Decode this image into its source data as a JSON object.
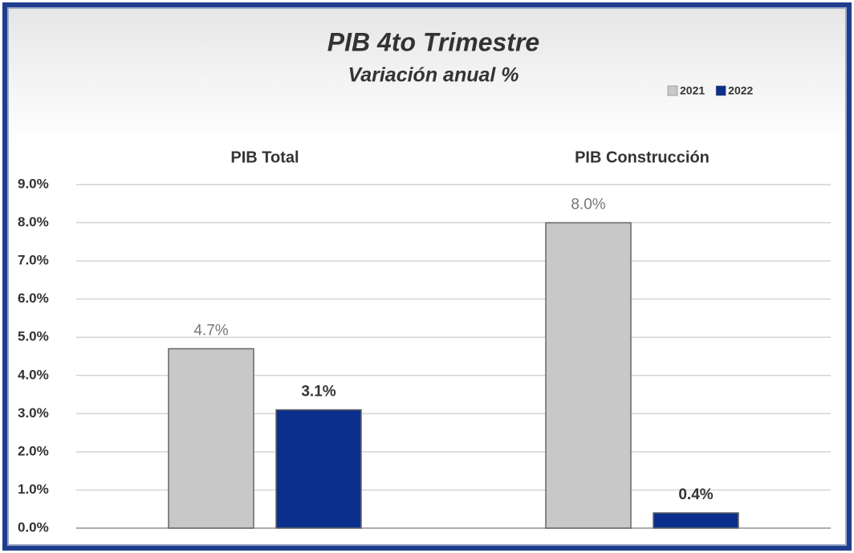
{
  "chart_data": {
    "type": "bar",
    "title": "PIB  4to Trimestre",
    "subtitle": "Variación anual %",
    "categories": [
      "PIB Total",
      "PIB Construcción"
    ],
    "series": [
      {
        "name": "2021",
        "color": "#c8c8c8",
        "values": [
          4.7,
          8.0
        ],
        "value_labels": [
          "4.7%",
          "8.0%"
        ]
      },
      {
        "name": "2022",
        "color": "#0b2f8c",
        "values": [
          3.1,
          0.4
        ],
        "value_labels": [
          "3.1%",
          "0.4%"
        ]
      }
    ],
    "ylim": [
      0,
      9
    ],
    "yticks": [
      {
        "value": 0,
        "label": "0.0%"
      },
      {
        "value": 1,
        "label": "1.0%"
      },
      {
        "value": 2,
        "label": "2.0%"
      },
      {
        "value": 3,
        "label": "3.0%"
      },
      {
        "value": 4,
        "label": "4.0%"
      },
      {
        "value": 5,
        "label": "5.0%"
      },
      {
        "value": 6,
        "label": "6.0%"
      },
      {
        "value": 7,
        "label": "7.0%"
      },
      {
        "value": 8,
        "label": "8.0%"
      },
      {
        "value": 9,
        "label": "9.0%"
      }
    ],
    "grid": true,
    "legend": "top-right"
  }
}
